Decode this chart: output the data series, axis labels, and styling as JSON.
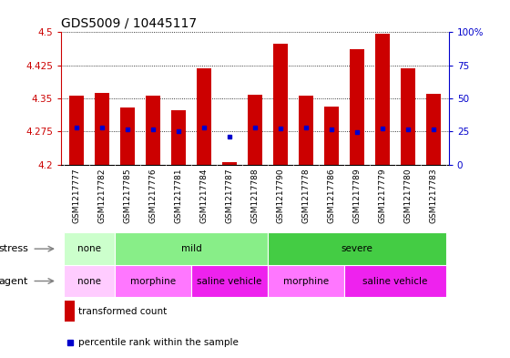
{
  "title": "GDS5009 / 10445117",
  "samples": [
    "GSM1217777",
    "GSM1217782",
    "GSM1217785",
    "GSM1217776",
    "GSM1217781",
    "GSM1217784",
    "GSM1217787",
    "GSM1217788",
    "GSM1217790",
    "GSM1217778",
    "GSM1217786",
    "GSM1217789",
    "GSM1217779",
    "GSM1217780",
    "GSM1217783"
  ],
  "transformed_count": [
    4.357,
    4.363,
    4.33,
    4.357,
    4.324,
    4.418,
    4.205,
    4.358,
    4.473,
    4.357,
    4.332,
    4.462,
    4.497,
    4.418,
    4.36
  ],
  "percentile_rank": [
    4.284,
    4.284,
    4.28,
    4.279,
    4.275,
    4.284,
    4.263,
    4.284,
    4.282,
    4.284,
    4.279,
    4.274,
    4.282,
    4.281,
    4.279
  ],
  "ymin": 4.2,
  "ymax": 4.5,
  "yticks": [
    4.2,
    4.275,
    4.35,
    4.425,
    4.5
  ],
  "ytick_labels": [
    "4.2",
    "4.275",
    "4.35",
    "4.425",
    "4.5"
  ],
  "right_yticks": [
    0,
    25,
    50,
    75,
    100
  ],
  "right_ytick_labels": [
    "0",
    "25",
    "50",
    "75",
    "100%"
  ],
  "bar_color": "#cc0000",
  "percentile_color": "#0000cc",
  "stress_colors": {
    "none": "#ccffcc",
    "mild": "#88ee88",
    "severe": "#44cc44"
  },
  "agent_colors": {
    "none": "#ffccff",
    "morphine": "#ff77ff",
    "saline vehicle": "#ee22ee"
  },
  "stress_groups": [
    {
      "label": "none",
      "start": 0,
      "end": 2
    },
    {
      "label": "mild",
      "start": 2,
      "end": 8
    },
    {
      "label": "severe",
      "start": 8,
      "end": 15
    }
  ],
  "agent_groups": [
    {
      "label": "none",
      "start": 0,
      "end": 2
    },
    {
      "label": "morphine",
      "start": 2,
      "end": 5
    },
    {
      "label": "saline vehicle",
      "start": 5,
      "end": 8
    },
    {
      "label": "morphine",
      "start": 8,
      "end": 11
    },
    {
      "label": "saline vehicle",
      "start": 11,
      "end": 15
    }
  ],
  "stress_label": "stress",
  "agent_label": "agent",
  "legend_bar_label": "transformed count",
  "legend_dot_label": "percentile rank within the sample",
  "tick_color_left": "#cc0000",
  "tick_color_right": "#0000cc",
  "sample_bg_color": "#d8d8d8",
  "title_fontsize": 10,
  "axis_fontsize": 7.5,
  "sample_fontsize": 6.5,
  "row_fontsize": 7.5
}
